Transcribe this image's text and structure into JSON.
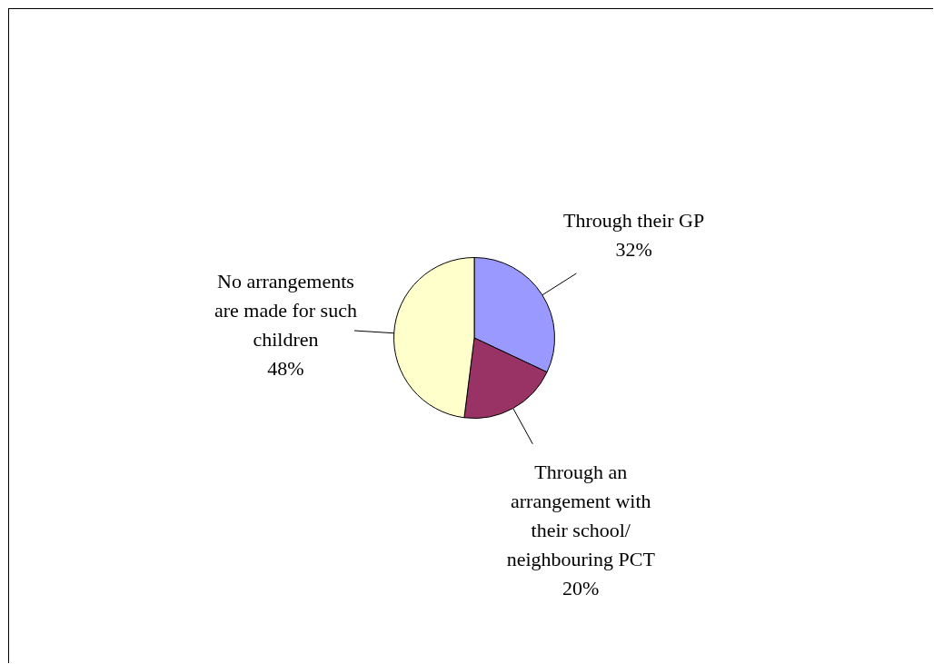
{
  "chart_data": {
    "type": "pie",
    "categories": [
      "Through their GP",
      "Through an arrangement with their school/ neighbouring PCT",
      "No arrangements are made for such children"
    ],
    "values": [
      32,
      20,
      48
    ],
    "colors": [
      "#9999ff",
      "#993366",
      "#ffffcc"
    ],
    "value_labels": [
      "32%",
      "20%",
      "48%"
    ]
  }
}
